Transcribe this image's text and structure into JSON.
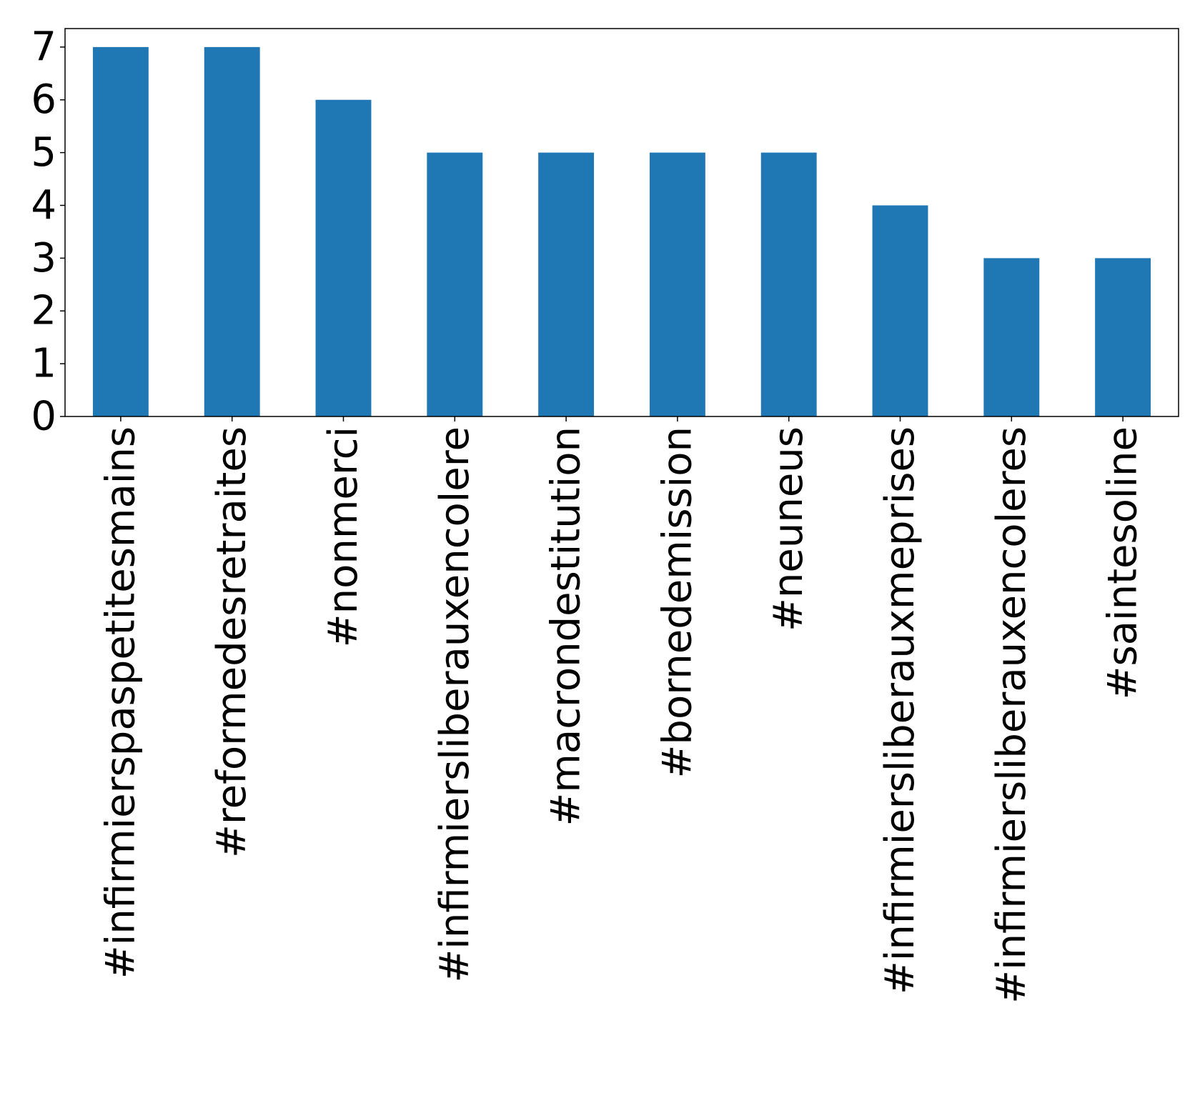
{
  "chart_data": {
    "type": "bar",
    "title": "",
    "xlabel": "",
    "ylabel": "",
    "categories": [
      "#infirmierspaspetitesmains",
      "#reformedesretraites",
      "#nonmerci",
      "#infirmiersliberauxencolere",
      "#macrondestitution",
      "#bornedemission",
      "#neuneus",
      "#infirmiersliberauxmeprises",
      "#infirmiersliberauxencoleres",
      "#saintesoline"
    ],
    "values": [
      7,
      7,
      6,
      5,
      5,
      5,
      5,
      4,
      3,
      3
    ],
    "ylim": [
      0,
      7.35
    ],
    "yticks": [
      0,
      1,
      2,
      3,
      4,
      5,
      6,
      7
    ],
    "ytick_labels": [
      "0",
      "1",
      "2",
      "3",
      "4",
      "5",
      "6",
      "7"
    ],
    "bar_color": "#1f77b4",
    "grid": false,
    "legend": "none"
  }
}
